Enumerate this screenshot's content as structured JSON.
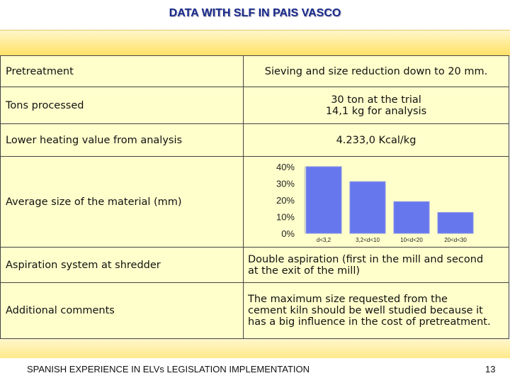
{
  "title": "DATA WITH SLF IN PAIS VASCO",
  "rows": [
    {
      "label": "Pretreatment",
      "value": "Sieving and size reduction  down to 20 mm."
    },
    {
      "label": "Tons processed",
      "value_lines": [
        "30 ton at the trial",
        "14,1 kg for analysis"
      ]
    },
    {
      "label": "Lower heating value from analysis",
      "value": "4.233,0 Kcal/kg"
    },
    {
      "label": "Average size of the material (mm)"
    },
    {
      "label": "Aspiration system at shredder",
      "value_lines": [
        "Double aspiration (first in the mill and second",
        "at the exit of the mill)"
      ]
    },
    {
      "label": "Additional comments",
      "value_lines": [
        "The maximum size requested from the",
        "cement kiln should be well studied because it",
        "has a big influence in the cost of pretreatment."
      ]
    }
  ],
  "chart_data": {
    "type": "bar",
    "categories": [
      "d<3,2",
      "3,2<d<10",
      "10<d<20",
      "20<d<30"
    ],
    "values": [
      40,
      31,
      19,
      12.5
    ],
    "ylim": [
      0,
      40
    ],
    "yticks": [
      "0%",
      "10%",
      "20%",
      "30%",
      "40%"
    ],
    "title": "",
    "xlabel": "",
    "ylabel": "",
    "bar_color": "#6677ee",
    "grid": false
  },
  "footer": "SPANISH EXPERIENCE IN ELVs LEGISLATION IMPLEMENTATION",
  "page_number": "13",
  "colors": {
    "title": "#1a2a8a",
    "table_bg": "#ffffcc",
    "band": "#ffe98a"
  }
}
